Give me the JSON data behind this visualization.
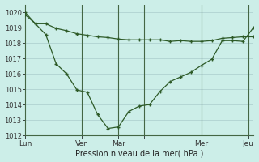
{
  "background_color": "#cceee8",
  "plot_bg_color": "#cceee8",
  "grid_color": "#aacccc",
  "line_color": "#2d5a27",
  "marker_color": "#2d5a27",
  "xlabel": "Pression niveau de la mer( hPa )",
  "ylim": [
    1012,
    1020.5
  ],
  "yticks": [
    1012,
    1013,
    1014,
    1015,
    1016,
    1017,
    1018,
    1019,
    1020
  ],
  "series1_x": [
    0,
    1,
    2,
    3,
    4,
    5,
    6,
    7,
    8,
    9,
    10,
    11,
    12,
    13,
    14,
    15,
    16,
    17,
    18,
    19,
    20,
    21,
    22
  ],
  "series1_y": [
    1019.85,
    1019.25,
    1019.25,
    1018.95,
    1018.8,
    1018.6,
    1018.5,
    1018.4,
    1018.35,
    1018.25,
    1018.2,
    1018.2,
    1018.2,
    1018.2,
    1018.1,
    1018.15,
    1018.1,
    1018.1,
    1018.15,
    1018.3,
    1018.35,
    1018.4,
    1018.4
  ],
  "series2_x": [
    0,
    1,
    2,
    3,
    4,
    5,
    6,
    7,
    8,
    9,
    10,
    11,
    12,
    13,
    14,
    15,
    16,
    17,
    18,
    19,
    20,
    21,
    22
  ],
  "series2_y": [
    1020.0,
    1019.25,
    1018.55,
    1016.65,
    1016.0,
    1014.95,
    1014.8,
    1013.35,
    1012.45,
    1012.55,
    1013.55,
    1013.9,
    1014.0,
    1014.85,
    1015.5,
    1015.8,
    1016.1,
    1016.55,
    1016.95,
    1018.15,
    1018.15,
    1018.1,
    1019.0
  ],
  "day_positions": [
    0,
    5.5,
    9,
    11.5,
    17,
    21.5
  ],
  "day_labels": [
    "Lun",
    "Ven",
    "Mar",
    "",
    "Mer",
    "Jeu"
  ],
  "vline_positions": [
    5.5,
    9,
    11.5,
    17,
    21.5
  ],
  "vline_color": "#446644",
  "xlim": [
    0,
    22
  ]
}
